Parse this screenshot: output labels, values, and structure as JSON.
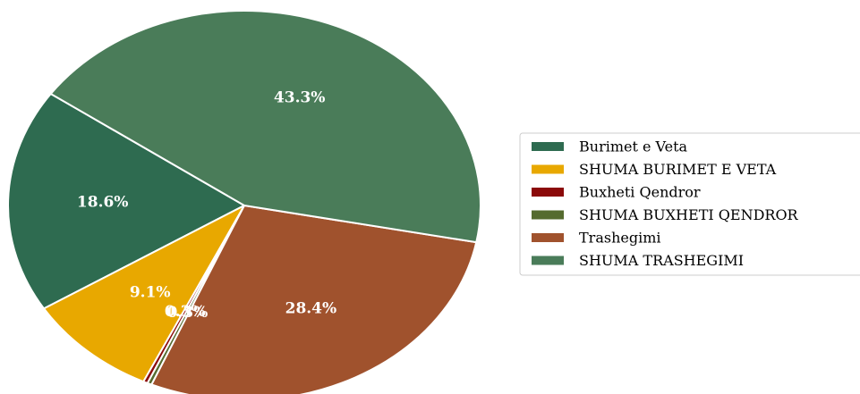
{
  "chart_data": {
    "type": "pie",
    "title": "",
    "categories": [
      "Burimet e Veta",
      "SHUMA BURIMET E VETA",
      "Buxheti Qendror",
      "SHUMA BUXHETI QENDROR",
      "Trashegimi",
      "SHUMA TRASHEGIMI"
    ],
    "values": [
      18.6,
      9.1,
      0.3,
      0.3,
      28.4,
      43.3
    ],
    "labels": [
      "18.6%",
      "9.1%",
      "0.3%",
      "0.3%",
      "28.4%",
      "43.3%"
    ],
    "colors": [
      "#2e6b50",
      "#e8a800",
      "#8b0a0a",
      "#556b2f",
      "#a0522d",
      "#4a7c59"
    ],
    "start_angle_deg": 145,
    "direction": "counterclockwise",
    "legend_position": "right"
  }
}
